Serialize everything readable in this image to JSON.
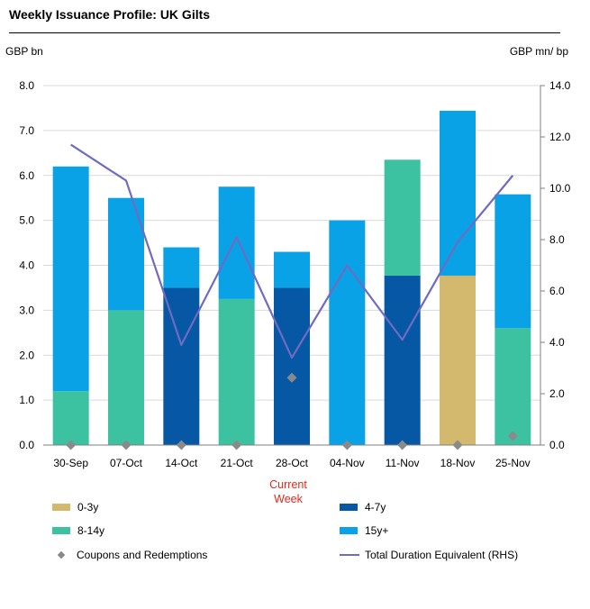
{
  "title": "Weekly Issuance Profile: UK Gilts",
  "y_left_unit": "GBP bn",
  "y_right_unit": "GBP mn/ bp",
  "current_week_label": "Current\nWeek",
  "colors": {
    "b0_3y": "#d2b96e",
    "b4_7y": "#0658a5",
    "b8_14y": "#3cc2a1",
    "b15y": "#0aa2e6",
    "coupons": "#8a8a8a",
    "duration": "#6f6bc1",
    "grid": "#d9d9d9"
  },
  "legend": [
    {
      "key": "b0_3y",
      "label": "0-3y",
      "kind": "bar"
    },
    {
      "key": "b4_7y",
      "label": "4-7y",
      "kind": "bar"
    },
    {
      "key": "b8_14y",
      "label": "8-14y",
      "kind": "bar"
    },
    {
      "key": "b15y",
      "label": "15y+",
      "kind": "bar"
    },
    {
      "key": "coupons",
      "label": "Coupons and Redemptions",
      "kind": "diamond"
    },
    {
      "key": "duration",
      "label": "Total Duration Equivalent (RHS)",
      "kind": "line"
    }
  ],
  "chart_data": {
    "type": "bar",
    "stacked": true,
    "title": "Weekly Issuance Profile: UK Gilts",
    "categories": [
      "30-Sep",
      "07-Oct",
      "14-Oct",
      "21-Oct",
      "28-Oct",
      "04-Nov",
      "11-Nov",
      "18-Nov",
      "25-Nov"
    ],
    "ylim": [
      0,
      8
    ],
    "yticks": [
      "0.0",
      "1.0",
      "2.0",
      "3.0",
      "4.0",
      "5.0",
      "6.0",
      "7.0",
      "8.0"
    ],
    "y2lim": [
      0,
      14
    ],
    "y2ticks": [
      "0.0",
      "2.0",
      "4.0",
      "6.0",
      "8.0",
      "10.0",
      "12.0",
      "14.0"
    ],
    "series": [
      {
        "name": "0-3y",
        "key": "b0_3y",
        "values": [
          0,
          0,
          0,
          0,
          0,
          0,
          0,
          3.77,
          0
        ]
      },
      {
        "name": "4-7y",
        "key": "b4_7y",
        "values": [
          0,
          0,
          3.5,
          0,
          3.5,
          0,
          3.77,
          0,
          0
        ]
      },
      {
        "name": "8-14y",
        "key": "b8_14y",
        "values": [
          1.2,
          3.0,
          0,
          3.25,
          0,
          0,
          2.58,
          0,
          2.6
        ]
      },
      {
        "name": "15y+",
        "key": "b15y",
        "values": [
          5.0,
          2.5,
          0.9,
          2.5,
          0.8,
          5.0,
          0,
          3.67,
          2.98
        ]
      }
    ],
    "markers": {
      "name": "Coupons and Redemptions",
      "values": [
        0,
        0,
        0,
        0,
        1.5,
        0,
        0,
        0,
        0.2
      ]
    },
    "line": {
      "name": "Total Duration Equivalent (RHS)",
      "axis": "right",
      "values": [
        11.7,
        10.3,
        3.9,
        8.1,
        3.4,
        7.0,
        4.1,
        7.9,
        10.5
      ]
    }
  }
}
